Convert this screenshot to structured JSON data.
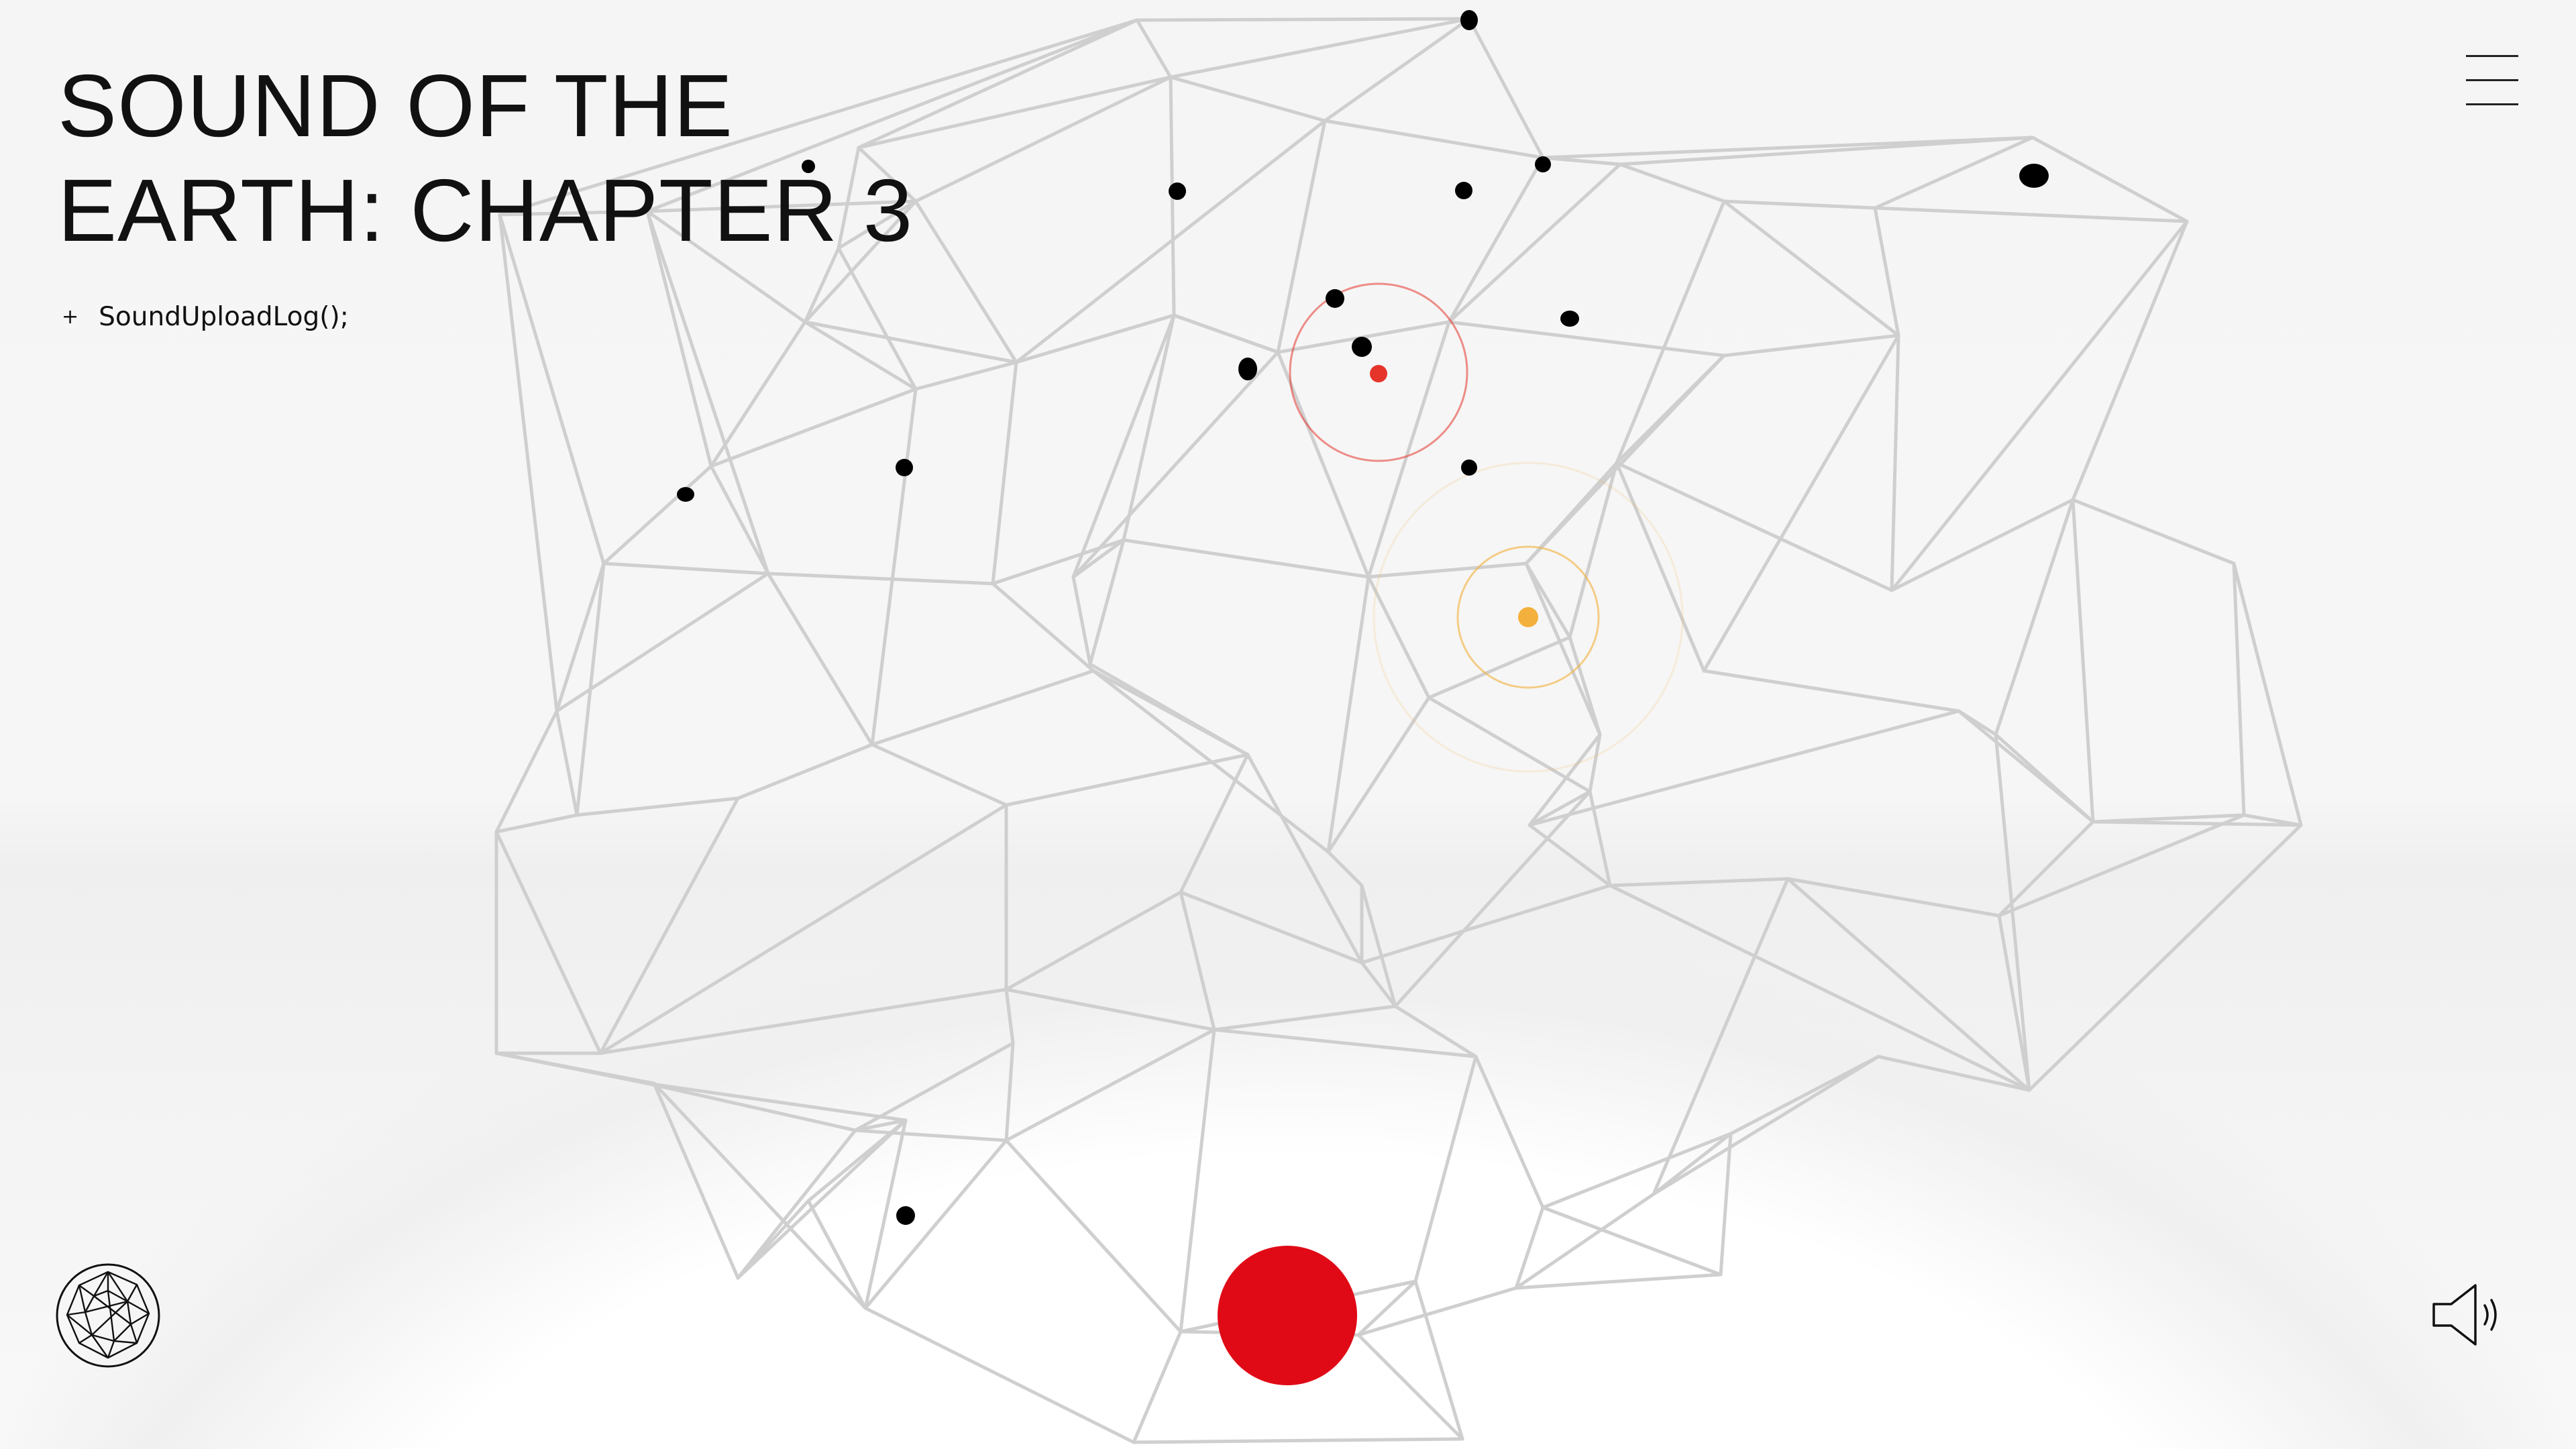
{
  "header": {
    "title_line1": "SOUND OF THE",
    "title_line2": "EARTH: CHAPTER 3"
  },
  "log_link": {
    "prefix": "+",
    "label": "SoundUploadLog();"
  },
  "icons": {
    "menu": "hamburger-menu-icon",
    "globe": "geodesic-globe-icon",
    "sound": "speaker-icon",
    "record": "record-button"
  },
  "colors": {
    "background": "#f4f4f4",
    "network_line": "#cfcfcf",
    "node": "#000000",
    "active_node": "#e6342b",
    "secondary_node": "#f4b03c",
    "record": "#e00a16",
    "text": "#111111"
  }
}
